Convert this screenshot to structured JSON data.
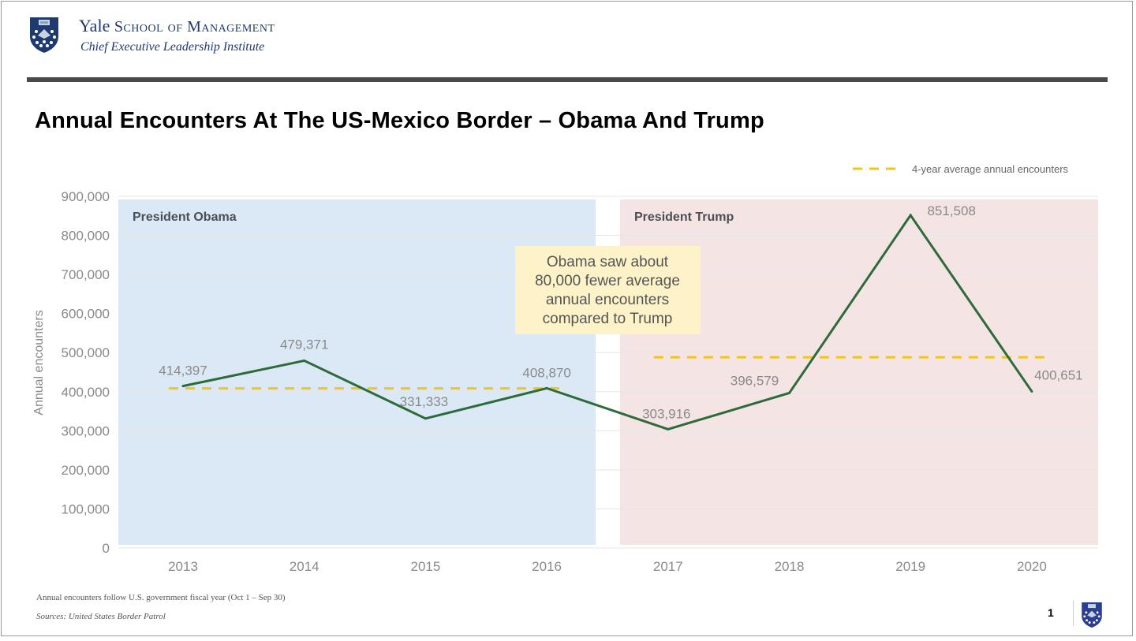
{
  "header": {
    "org_name_main": "Yale",
    "org_name_rest": "School of Management",
    "org_subtitle": "Chief Executive Leadership Institute",
    "logo_icon": "yale-shield-icon"
  },
  "slide": {
    "title": "Annual Encounters At The US-Mexico Border – Obama And Trump",
    "footnote": "Annual encounters follow U.S. government fiscal year (Oct 1 – Sep 30)",
    "source": "Sources: United States Border Patrol",
    "page_number": "1"
  },
  "colors": {
    "line": "#2e6b3a",
    "average": "#f2c51a",
    "obama_band": "#dbe8f5",
    "trump_band": "#f4e4e4",
    "annotation_bg": "#fdf2c8",
    "brand_navy": "#1f3a6e"
  },
  "chart_data": {
    "type": "line",
    "title": "Annual Encounters At The US-Mexico Border – Obama And Trump",
    "xlabel": "",
    "ylabel": "Annual encounters",
    "categories": [
      "2013",
      "2014",
      "2015",
      "2016",
      "2017",
      "2018",
      "2019",
      "2020"
    ],
    "series": [
      {
        "name": "Annual encounters",
        "values": [
          414397,
          479371,
          331333,
          408870,
          303916,
          396579,
          851508,
          400651
        ]
      }
    ],
    "data_labels": [
      "414,397",
      "479,371",
      "331,333",
      "408,870",
      "303,916",
      "396,579",
      "851,508",
      "400,651"
    ],
    "averages": [
      {
        "name": "4-year average annual encounters",
        "period": "Obama",
        "from": "2013",
        "to": "2016",
        "value": 408493
      },
      {
        "name": "4-year average annual encounters",
        "period": "Trump",
        "from": "2017",
        "to": "2020",
        "value": 488164
      }
    ],
    "yticks": [
      0,
      100000,
      200000,
      300000,
      400000,
      500000,
      600000,
      700000,
      800000,
      900000
    ],
    "ytick_labels": [
      "0",
      "100,000",
      "200,000",
      "300,000",
      "400,000",
      "500,000",
      "600,000",
      "700,000",
      "800,000",
      "900,000"
    ],
    "ylim": [
      0,
      900000
    ],
    "grid": true,
    "legend": {
      "entries": [
        "4-year average annual encounters"
      ],
      "position": "top-right"
    },
    "bands": [
      {
        "label": "President Obama",
        "from": "2013",
        "to": "2016"
      },
      {
        "label": "President Trump",
        "from": "2017",
        "to": "2020"
      }
    ],
    "annotation": [
      "Obama saw about",
      "80,000 fewer average",
      "annual encounters",
      "compared to Trump"
    ]
  }
}
